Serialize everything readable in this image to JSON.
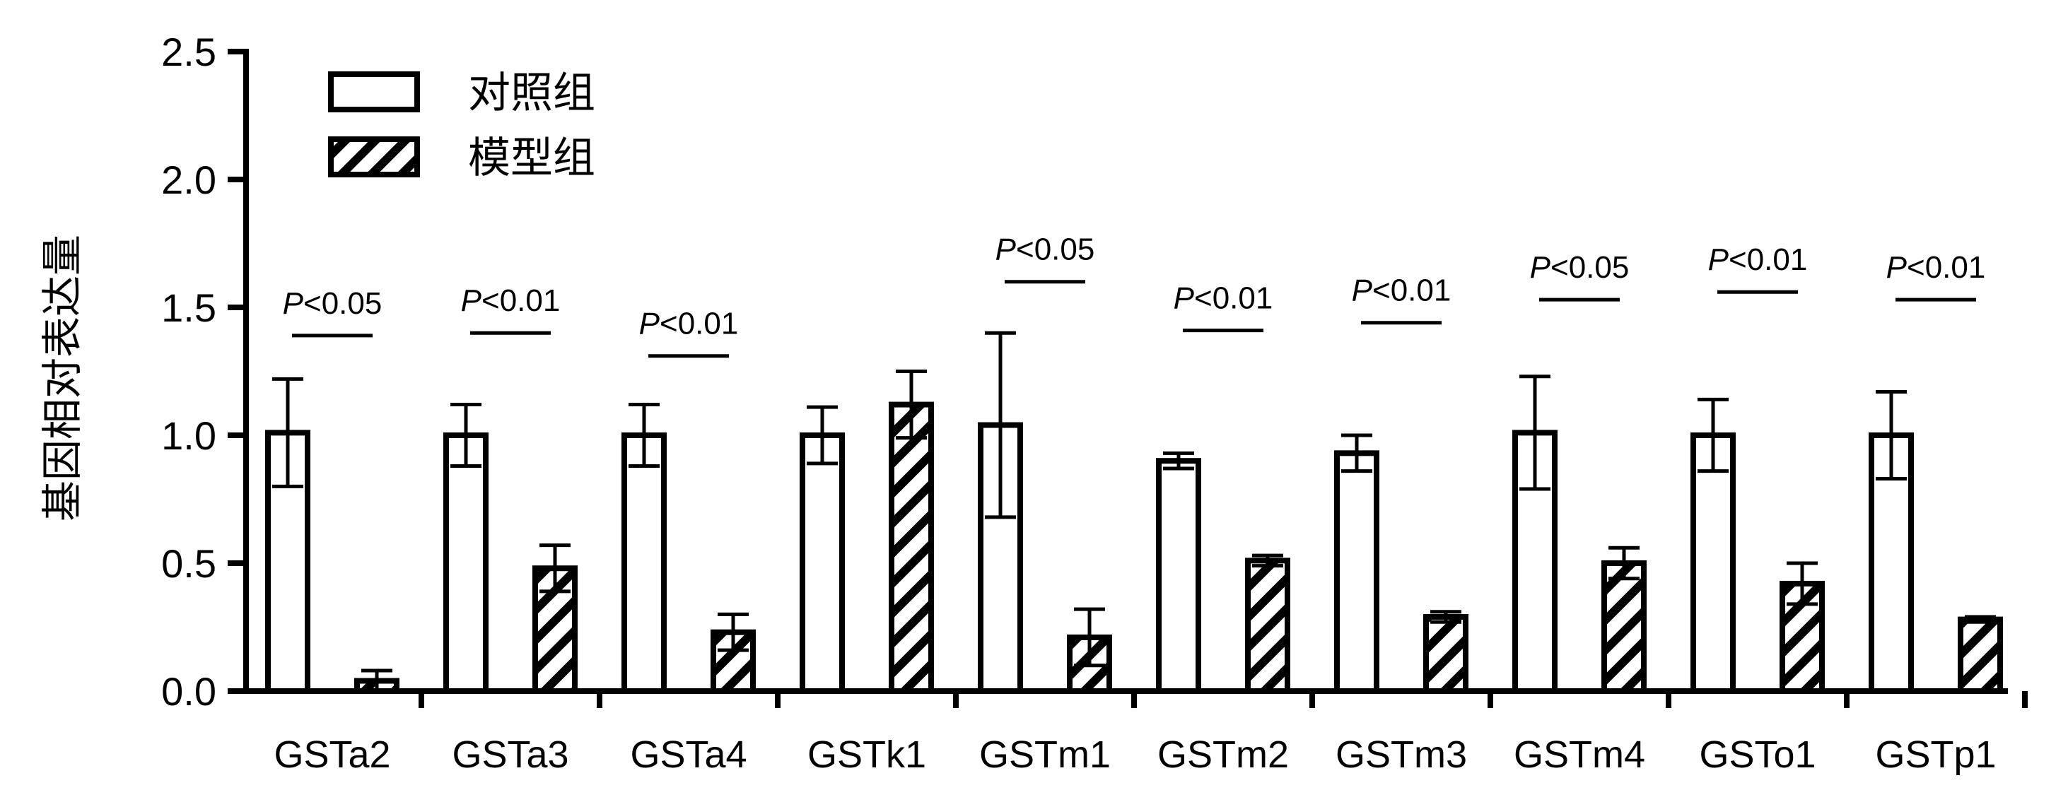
{
  "chart_data": {
    "type": "bar",
    "title": "",
    "xlabel": "",
    "ylabel": "基因相对表达量",
    "ylim": [
      0,
      2.5
    ],
    "yticks": [
      0.0,
      0.5,
      1.0,
      1.5,
      2.0,
      2.5
    ],
    "ytick_labels": [
      "0.0",
      "0.5",
      "1.0",
      "1.5",
      "2.0",
      "2.5"
    ],
    "categories": [
      "GSTa2",
      "GSTa3",
      "GSTa4",
      "GSTk1",
      "GSTm1",
      "GSTm2",
      "GSTm3",
      "GSTm4",
      "GSTo1",
      "GSTp1"
    ],
    "series": [
      {
        "name": "对照组",
        "pattern": "open",
        "values": [
          1.01,
          1.0,
          1.0,
          1.0,
          1.04,
          0.9,
          0.93,
          1.01,
          1.0,
          1.0
        ],
        "errors": [
          0.21,
          0.12,
          0.12,
          0.11,
          0.36,
          0.03,
          0.07,
          0.22,
          0.14,
          0.17
        ]
      },
      {
        "name": "模型组",
        "pattern": "hatched",
        "values": [
          0.04,
          0.48,
          0.23,
          1.12,
          0.21,
          0.51,
          0.29,
          0.5,
          0.42,
          0.28
        ],
        "errors": [
          0.04,
          0.09,
          0.07,
          0.13,
          0.11,
          0.02,
          0.02,
          0.06,
          0.08,
          0.01
        ]
      }
    ],
    "significance": [
      {
        "category": "GSTa2",
        "p_symbol": "P",
        "text": "<0.05",
        "line_y": 1.39,
        "text_y": 1.52
      },
      {
        "category": "GSTa3",
        "p_symbol": "P",
        "text": "<0.01",
        "line_y": 1.4,
        "text_y": 1.53
      },
      {
        "category": "GSTa4",
        "p_symbol": "P",
        "text": "<0.01",
        "line_y": 1.31,
        "text_y": 1.44
      },
      {
        "category": "GSTk1",
        "p_symbol": "",
        "text": "",
        "line_y": null,
        "text_y": null
      },
      {
        "category": "GSTm1",
        "p_symbol": "P",
        "text": "<0.05",
        "line_y": 1.6,
        "text_y": 1.73
      },
      {
        "category": "GSTm2",
        "p_symbol": "P",
        "text": "<0.01",
        "line_y": 1.41,
        "text_y": 1.54
      },
      {
        "category": "GSTm3",
        "p_symbol": "P",
        "text": "<0.01",
        "line_y": 1.44,
        "text_y": 1.57
      },
      {
        "category": "GSTm4",
        "p_symbol": "P",
        "text": "<0.05",
        "line_y": 1.53,
        "text_y": 1.66
      },
      {
        "category": "GSTo1",
        "p_symbol": "P",
        "text": "<0.01",
        "line_y": 1.56,
        "text_y": 1.69
      },
      {
        "category": "GSTp1",
        "p_symbol": "P",
        "text": "<0.01",
        "line_y": 1.53,
        "text_y": 1.66
      }
    ],
    "legend": {
      "placement": "top-left",
      "entries": [
        {
          "label": "对照组",
          "pattern": "open"
        },
        {
          "label": "模型组",
          "pattern": "hatched"
        }
      ]
    },
    "colors": {
      "stroke": "#000000",
      "fill": "#ffffff"
    }
  }
}
